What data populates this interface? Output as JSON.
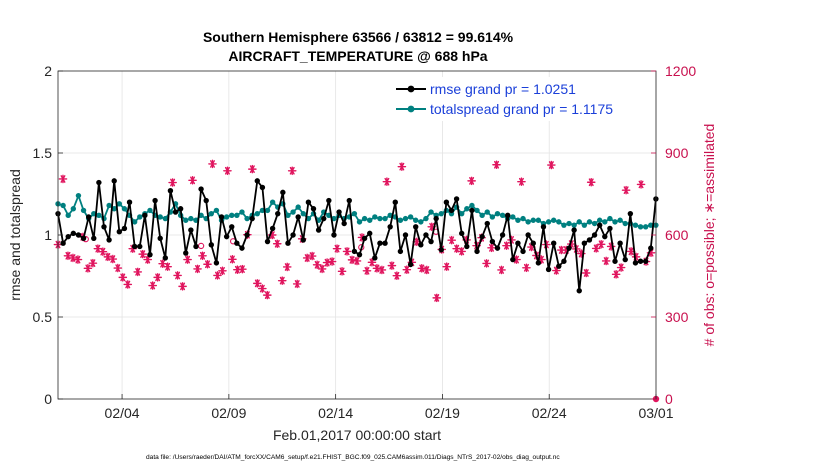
{
  "chart_data": {
    "type": "line",
    "title": "Southern Hemisphere 63566 / 63812 = 99.614%",
    "subtitle": "AIRCRAFT_TEMPERATURE @ 688 hPa",
    "xlabel": "Feb.01,2017 00:00:00 start",
    "ylabel": "rmse and totalspread",
    "ylabel_right": "# of obs: o=possible; ∗=assimilated",
    "footnote": "data file: /Users/raeder/DAI/ATM_forcXX/CAM6_setup/f.e21.FHIST_BGC.f09_025.CAM6assim.011/Diags_NTrS_2017-02/obs_diag_output.nc",
    "xlim": [
      0,
      28
    ],
    "ylim": [
      0,
      2
    ],
    "ylim_right": [
      0,
      1200
    ],
    "x_ticks": [
      3,
      8,
      13,
      18,
      23,
      28
    ],
    "x_tick_labels": [
      "02/04",
      "02/09",
      "02/14",
      "02/19",
      "02/24",
      "03/01"
    ],
    "y_ticks": [
      0,
      0.5,
      1,
      1.5,
      2
    ],
    "y_tick_labels": [
      "0",
      "0.5",
      "1",
      "1.5",
      "2"
    ],
    "y_ticks_right": [
      0,
      300,
      600,
      900,
      1200
    ],
    "y_tick_labels_right": [
      "0",
      "300",
      "600",
      "900",
      "1200"
    ],
    "grid": true,
    "legend_position": "top-right",
    "colors": {
      "rmse": "#000000",
      "spread": "#008080",
      "obs": "#e0155e",
      "right_axis": "#c8104e"
    },
    "series": [
      {
        "name": "rmse grand pr = 1.0251",
        "axis": "left",
        "marker": "filled-circle",
        "values": [
          1.13,
          0.95,
          0.99,
          1.01,
          1.0,
          0.98,
          1.11,
          0.98,
          1.32,
          1.05,
          0.97,
          1.33,
          1.02,
          1.04,
          1.2,
          0.93,
          0.93,
          1.12,
          0.88,
          1.21,
          0.98,
          0.86,
          1.27,
          1.14,
          1.16,
          0.89,
          1.03,
          0.93,
          1.28,
          1.21,
          0.94,
          0.83,
          1.11,
          0.99,
          1.05,
          0.95,
          0.92,
          1.0,
          1.1,
          1.33,
          1.29,
          0.96,
          1.04,
          1.13,
          1.26,
          0.95,
          1.0,
          1.11,
          0.97,
          1.2,
          1.16,
          1.03,
          1.1,
          1.21,
          1.0,
          1.14,
          1.07,
          1.21,
          0.9,
          0.88,
          0.98,
          1.01,
          0.86,
          0.95,
          0.95,
          1.05,
          1.2,
          0.9,
          1.0,
          0.82,
          1.05,
          0.94,
          1.0,
          0.96,
          1.1,
          0.91,
          1.2,
          1.15,
          1.22,
          1.01,
          0.93,
          1.15,
          0.9,
          0.99,
          1.07,
          0.96,
          0.92,
          1.0,
          1.12,
          0.85,
          0.95,
          0.9,
          1.0,
          0.95,
          0.83,
          1.05,
          0.79,
          0.95,
          0.81,
          0.84,
          0.92,
          1.03,
          0.66,
          0.95,
          0.97,
          1.0,
          1.06,
          0.99,
          1.04,
          0.84,
          0.95,
          0.85,
          1.13,
          0.83,
          0.84,
          0.84,
          0.92,
          1.22
        ]
      },
      {
        "name": "totalspread grand pr = 1.1175",
        "axis": "left",
        "marker": "filled-circle",
        "values": [
          1.19,
          1.18,
          1.12,
          1.16,
          1.24,
          1.15,
          1.1,
          1.13,
          1.12,
          1.1,
          1.18,
          1.16,
          1.19,
          1.16,
          1.12,
          1.08,
          1.11,
          1.13,
          1.15,
          1.12,
          1.11,
          1.1,
          1.14,
          1.19,
          1.12,
          1.09,
          1.1,
          1.09,
          1.12,
          1.1,
          1.13,
          1.15,
          1.09,
          1.11,
          1.12,
          1.12,
          1.14,
          1.1,
          1.12,
          1.13,
          1.15,
          1.15,
          1.2,
          1.17,
          1.19,
          1.12,
          1.14,
          1.17,
          1.13,
          1.1,
          1.13,
          1.09,
          1.14,
          1.12,
          1.1,
          1.12,
          1.1,
          1.11,
          1.13,
          1.08,
          1.1,
          1.09,
          1.11,
          1.1,
          1.1,
          1.12,
          1.11,
          1.09,
          1.1,
          1.11,
          1.09,
          1.08,
          1.1,
          1.14,
          1.12,
          1.13,
          1.15,
          1.13,
          1.17,
          1.13,
          1.16,
          1.18,
          1.15,
          1.12,
          1.14,
          1.11,
          1.13,
          1.12,
          1.1,
          1.11,
          1.09,
          1.1,
          1.08,
          1.09,
          1.09,
          1.07,
          1.08,
          1.09,
          1.08,
          1.06,
          1.07,
          1.06,
          1.08,
          1.06,
          1.08,
          1.07,
          1.09,
          1.08,
          1.1,
          1.08,
          1.09,
          1.07,
          1.07,
          1.06,
          1.05,
          1.05,
          1.06,
          1.06
        ]
      },
      {
        "name": "assimilated obs count",
        "axis": "right",
        "marker": "asterisk",
        "values": [
          565,
          805,
          524,
          516,
          510,
          593,
          478,
          497,
          550,
          539,
          520,
          512,
          479,
          445,
          419,
          550,
          465,
          530,
          510,
          415,
          445,
          495,
          484,
          792,
          452,
          412,
          510,
          800,
          476,
          524,
          493,
          860,
          452,
          469,
          835,
          511,
          473,
          475,
          601,
          841,
          423,
          404,
          380,
          600,
          568,
          433,
          483,
          835,
          421,
          586,
          516,
          523,
          491,
          476,
          499,
          503,
          550,
          467,
          540,
          509,
          505,
          591,
          469,
          500,
          478,
          472,
          795,
          488,
          451,
          850,
          473,
          500,
          575,
          478,
          472,
          630,
          370,
          547,
          484,
          581,
          550,
          540,
          582,
          798,
          561,
          590,
          496,
          553,
          857,
          472,
          561,
          582,
          510,
          795,
          480,
          556,
          525,
          510,
          565,
          856,
          470,
          545,
          545,
          567,
          549,
          532,
          461,
          793,
          551,
          566,
          505,
          558,
          456,
          481,
          764,
          540,
          520,
          785,
          503,
          535
        ]
      },
      {
        "name": "possible obs count",
        "axis": "right",
        "marker": "open-circle",
        "x": [
          1.3,
          6.7,
          8.2,
          14.2,
          17.7
        ],
        "values": [
          585,
          560,
          577,
          555,
          612
        ]
      }
    ]
  }
}
